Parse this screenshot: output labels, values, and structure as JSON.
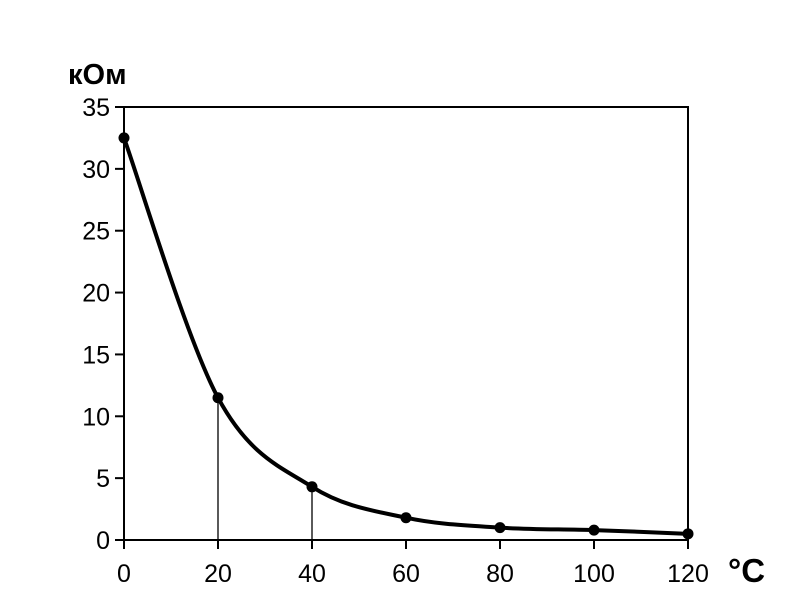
{
  "chart_data": {
    "type": "line",
    "title": "",
    "ylabel": "кОм",
    "xlabel": "°C",
    "x": [
      0,
      20,
      40,
      60,
      80,
      100,
      120
    ],
    "series": [
      {
        "values": [
          32.5,
          11.5,
          4.3,
          1.8,
          1.0,
          0.8,
          0.5
        ]
      }
    ],
    "xlim": [
      0,
      120
    ],
    "ylim": [
      0,
      35
    ],
    "x_ticks": [
      "0",
      "20",
      "40",
      "60",
      "80",
      "100",
      "120"
    ],
    "y_ticks": [
      "0",
      "5",
      "10",
      "15",
      "20",
      "25",
      "30",
      "35"
    ],
    "grid": false,
    "drop_lines_at_x": [
      20,
      40
    ],
    "colors": {
      "line": "#000000",
      "axes": "#000000",
      "background": "#ffffff"
    }
  }
}
